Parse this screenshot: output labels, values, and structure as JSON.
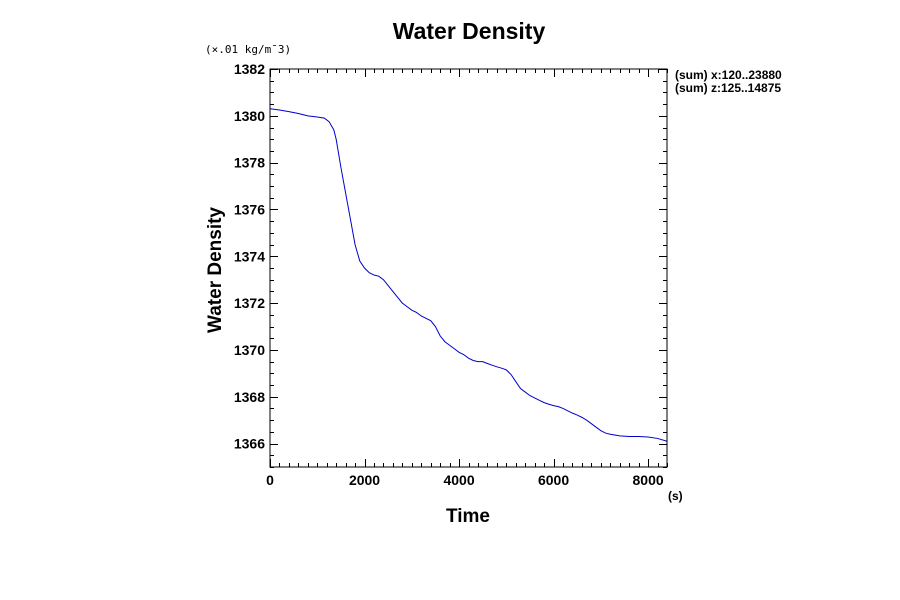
{
  "chart_data": {
    "type": "line",
    "title": "Water Density",
    "xlabel": "Time",
    "ylabel": "Water Density",
    "x_unit": "(s)",
    "y_unit": "(×.01 kg/m¯3)",
    "xlim": [
      0,
      8400
    ],
    "ylim": [
      1365,
      1382
    ],
    "x_ticks": [
      0,
      2000,
      4000,
      6000,
      8000
    ],
    "y_ticks": [
      1366,
      1368,
      1370,
      1372,
      1374,
      1376,
      1378,
      1380,
      1382
    ],
    "grid": false,
    "annotations": [
      "(sum) x:120..23880",
      "(sum) z:125..14875"
    ],
    "line_color": "#0000cc",
    "series": [
      {
        "x": [
          0,
          200,
          400,
          600,
          800,
          1000,
          1150,
          1250,
          1350,
          1400,
          1450,
          1500,
          1600,
          1700,
          1800,
          1900,
          2000,
          2100,
          2200,
          2300,
          2400,
          2500,
          2600,
          2700,
          2800,
          2900,
          3000,
          3100,
          3200,
          3300,
          3400,
          3500,
          3600,
          3700,
          3800,
          3900,
          4000,
          4100,
          4200,
          4300,
          4400,
          4500,
          4600,
          4700,
          4800,
          4900,
          5000,
          5100,
          5200,
          5300,
          5400,
          5500,
          5600,
          5700,
          5800,
          5900,
          6000,
          6100,
          6200,
          6300,
          6400,
          6500,
          6600,
          6700,
          6800,
          6900,
          7000,
          7100,
          7200,
          7400,
          7600,
          7800,
          8000,
          8200,
          8400
        ],
        "y": [
          1380.3,
          1380.25,
          1380.18,
          1380.1,
          1380.0,
          1379.95,
          1379.9,
          1379.75,
          1379.4,
          1379.0,
          1378.4,
          1377.8,
          1376.7,
          1375.6,
          1374.5,
          1373.8,
          1373.5,
          1373.3,
          1373.2,
          1373.15,
          1373.0,
          1372.75,
          1372.5,
          1372.25,
          1372.0,
          1371.85,
          1371.7,
          1371.6,
          1371.45,
          1371.35,
          1371.25,
          1371.0,
          1370.6,
          1370.35,
          1370.2,
          1370.05,
          1369.9,
          1369.8,
          1369.65,
          1369.55,
          1369.5,
          1369.5,
          1369.42,
          1369.35,
          1369.28,
          1369.22,
          1369.15,
          1368.95,
          1368.65,
          1368.35,
          1368.2,
          1368.05,
          1367.95,
          1367.85,
          1367.75,
          1367.68,
          1367.62,
          1367.58,
          1367.5,
          1367.4,
          1367.3,
          1367.22,
          1367.12,
          1367.0,
          1366.85,
          1366.7,
          1366.55,
          1366.45,
          1366.4,
          1366.33,
          1366.3,
          1366.3,
          1366.28,
          1366.22,
          1366.1
        ]
      }
    ]
  }
}
